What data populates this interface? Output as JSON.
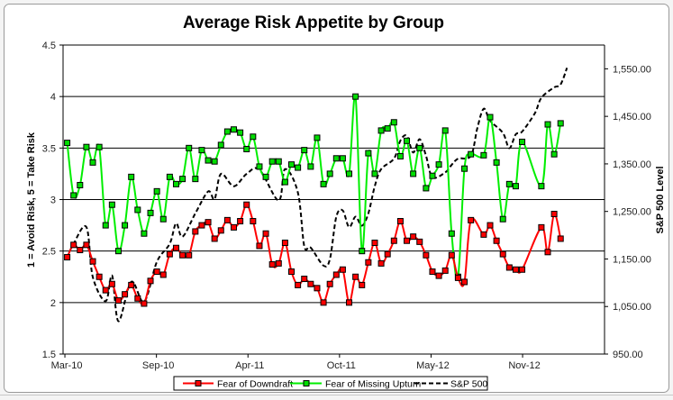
{
  "chart_data": {
    "type": "line",
    "title": "Average Risk Appetite by Group",
    "ylabel": "1 = Avoid Risk, 5 = Take Risk",
    "y2label": "S&P 500 Level",
    "ylim": [
      1.5,
      4.5
    ],
    "y_ticks": [
      "1.5",
      "2",
      "2.5",
      "3",
      "3.5",
      "4",
      "4.5"
    ],
    "y2lim": [
      950,
      1600
    ],
    "y2_ticks": [
      "950.00",
      "1,050.00",
      "1,150.00",
      "1,250.00",
      "1,350.00",
      "1,450.00",
      "1,550.00"
    ],
    "x_ticks": [
      {
        "label": "Mar-10",
        "date": "2010-03-01"
      },
      {
        "label": "Sep-10",
        "date": "2010-09-17"
      },
      {
        "label": "Apr-11",
        "date": "2011-04-05"
      },
      {
        "label": "Oct-11",
        "date": "2011-10-22"
      },
      {
        "label": "May-12",
        "date": "2012-05-09"
      },
      {
        "label": "Nov-12",
        "date": "2012-11-25"
      }
    ],
    "xlim": [
      "2010-02-25",
      "2013-05-23"
    ],
    "grid": "horizontal major lines",
    "legend_position": "bottom",
    "survey_dates": [
      "2010-03-06",
      "2010-03-20",
      "2010-04-03",
      "2010-04-17",
      "2010-05-01",
      "2010-05-15",
      "2010-05-29",
      "2010-06-12",
      "2010-06-26",
      "2010-07-10",
      "2010-07-24",
      "2010-08-07",
      "2010-08-21",
      "2010-09-04",
      "2010-09-18",
      "2010-10-02",
      "2010-10-16",
      "2010-10-30",
      "2010-11-13",
      "2010-11-27",
      "2010-12-11",
      "2010-12-25",
      "2011-01-08",
      "2011-01-22",
      "2011-02-05",
      "2011-02-19",
      "2011-03-05",
      "2011-03-19",
      "2011-04-02",
      "2011-04-16",
      "2011-04-30",
      "2011-05-14",
      "2011-05-28",
      "2011-06-11",
      "2011-06-25",
      "2011-07-09",
      "2011-07-23",
      "2011-08-06",
      "2011-08-20",
      "2011-09-03",
      "2011-09-17",
      "2011-10-01",
      "2011-10-15",
      "2011-10-29",
      "2011-11-12",
      "2011-11-26",
      "2011-12-10",
      "2011-12-24",
      "2012-01-07",
      "2012-01-21",
      "2012-02-04",
      "2012-02-18",
      "2012-03-03",
      "2012-03-17",
      "2012-03-31",
      "2012-04-14",
      "2012-04-28",
      "2012-05-12",
      "2012-05-26",
      "2012-06-09",
      "2012-06-23",
      "2012-07-07",
      "2012-07-21",
      "2012-08-04",
      "2012-09-01",
      "2012-09-15",
      "2012-09-29",
      "2012-10-13",
      "2012-10-27",
      "2012-11-10",
      "2012-11-24",
      "2013-01-05",
      "2013-01-19",
      "2013-02-02",
      "2013-02-16"
    ],
    "series": [
      {
        "name": "Fear of Downdraft",
        "axis": "left",
        "color": "#ff0000",
        "marker_color": "#ff0000",
        "values": [
          2.44,
          2.56,
          2.51,
          2.56,
          2.4,
          2.25,
          2.12,
          2.18,
          2.02,
          2.08,
          2.17,
          2.04,
          1.99,
          2.21,
          2.3,
          2.27,
          2.47,
          2.53,
          2.46,
          2.46,
          2.69,
          2.75,
          2.78,
          2.62,
          2.7,
          2.8,
          2.73,
          2.79,
          2.95,
          2.79,
          2.55,
          2.67,
          2.37,
          2.38,
          2.58,
          2.3,
          2.17,
          2.23,
          2.18,
          2.14,
          2.0,
          2.18,
          2.27,
          2.32,
          2.0,
          2.25,
          2.17,
          2.39,
          2.58,
          2.38,
          2.47,
          2.6,
          2.79,
          2.6,
          2.64,
          2.59,
          2.46,
          2.3,
          2.26,
          2.31,
          2.46,
          2.24,
          2.2,
          2.8,
          2.66,
          2.75,
          2.6,
          2.47,
          2.34,
          2.32,
          2.32,
          2.73,
          2.49,
          2.86,
          2.62
        ]
      },
      {
        "name": "Fear of Missing Upturn",
        "axis": "left",
        "color": "#00ee00",
        "marker_color": "#00dd00",
        "values": [
          3.55,
          3.04,
          3.14,
          3.51,
          3.36,
          3.51,
          2.75,
          2.95,
          2.5,
          2.75,
          3.22,
          2.9,
          2.67,
          2.87,
          3.08,
          2.81,
          3.22,
          3.15,
          3.2,
          3.5,
          3.2,
          3.48,
          3.38,
          3.37,
          3.53,
          3.66,
          3.68,
          3.65,
          3.49,
          3.61,
          3.32,
          3.22,
          3.37,
          3.37,
          3.17,
          3.34,
          3.31,
          3.48,
          3.32,
          3.6,
          3.15,
          3.25,
          3.4,
          3.4,
          3.25,
          4.0,
          2.5,
          3.45,
          3.25,
          3.67,
          3.69,
          3.75,
          3.42,
          3.57,
          3.25,
          3.5,
          3.11,
          3.23,
          3.34,
          3.67,
          2.67,
          2.25,
          3.3,
          3.44,
          3.43,
          3.8,
          3.36,
          2.81,
          3.15,
          3.13,
          3.56,
          3.13,
          3.73,
          3.44,
          3.74
        ]
      },
      {
        "name": "S&P 500",
        "axis": "right",
        "color": "#000000",
        "dash": true,
        "dates": [
          "2010-03-06",
          "2010-03-20",
          "2010-04-17",
          "2010-05-01",
          "2010-05-29",
          "2010-06-12",
          "2010-06-26",
          "2010-07-24",
          "2010-08-21",
          "2010-09-18",
          "2010-10-16",
          "2010-10-30",
          "2010-11-13",
          "2010-12-11",
          "2011-01-08",
          "2011-01-22",
          "2011-02-05",
          "2011-03-05",
          "2011-04-02",
          "2011-04-30",
          "2011-06-11",
          "2011-06-25",
          "2011-07-23",
          "2011-08-06",
          "2011-08-20",
          "2011-09-17",
          "2011-10-01",
          "2011-10-15",
          "2011-10-29",
          "2011-11-12",
          "2011-11-26",
          "2011-12-10",
          "2011-12-24",
          "2012-01-07",
          "2012-01-21",
          "2012-02-18",
          "2012-03-03",
          "2012-03-17",
          "2012-03-31",
          "2012-04-14",
          "2012-04-28",
          "2012-05-12",
          "2012-06-09",
          "2012-06-23",
          "2012-07-07",
          "2012-08-04",
          "2012-08-18",
          "2012-09-01",
          "2012-09-15",
          "2012-10-13",
          "2012-10-27",
          "2012-11-10",
          "2012-11-24",
          "2012-12-22",
          "2013-01-05",
          "2013-02-02",
          "2013-02-16",
          "2013-03-02"
        ],
        "values": [
          1153,
          1182,
          1217,
          1112,
          1061,
          1115,
          1019,
          1102,
          1060,
          1144,
          1182,
          1225,
          1197,
          1246,
          1292,
          1276,
          1329,
          1303,
          1329,
          1338,
          1273,
          1339,
          1290,
          1177,
          1174,
          1136,
          1150,
          1239,
          1252,
          1217,
          1239,
          1220,
          1246,
          1303,
          1339,
          1361,
          1399,
          1409,
          1374,
          1402,
          1367,
          1322,
          1332,
          1348,
          1361,
          1367,
          1425,
          1466,
          1441,
          1415,
          1383,
          1412,
          1418,
          1457,
          1489,
          1511,
          1517,
          1552
        ]
      }
    ]
  }
}
